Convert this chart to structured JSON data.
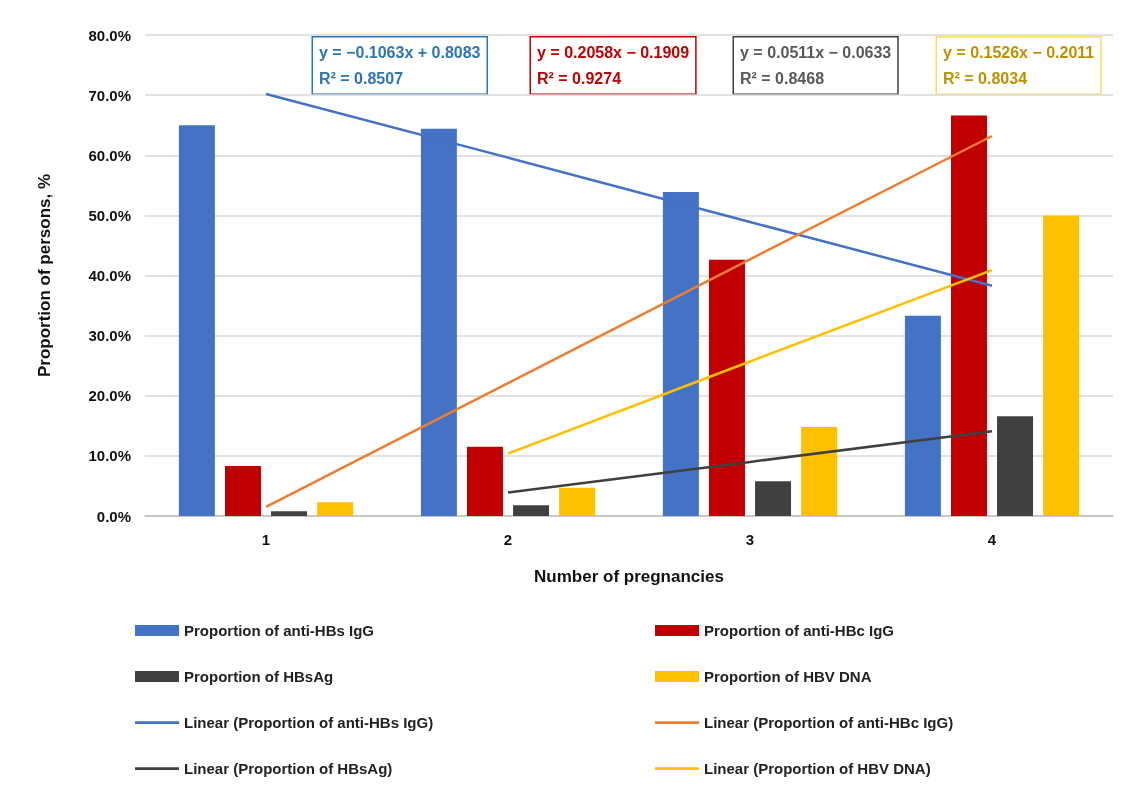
{
  "chart_data": {
    "type": "bar",
    "xlabel": "Number of pregnancies",
    "ylabel": "Proportion of persons, %",
    "categories": [
      "1",
      "2",
      "3",
      "4"
    ],
    "series": [
      {
        "name": "Proportion of anti-HBs IgG",
        "color": "#4472c4",
        "values": [
          65.0,
          64.4,
          53.9,
          33.3
        ]
      },
      {
        "name": "Proportion of anti-HBc IgG",
        "color": "#c00000",
        "values": [
          8.3,
          11.5,
          42.6,
          66.6
        ]
      },
      {
        "name": "Proportion of HBsAg",
        "color": "#404040",
        "values": [
          0.8,
          1.8,
          5.8,
          16.6
        ]
      },
      {
        "name": "Proportion of HBV DNA",
        "color": "#ffc000",
        "values": [
          2.3,
          4.7,
          14.8,
          50.0
        ]
      },
      {
        "name": "Linear (Proportion of anti-HBs IgG)",
        "type": "line",
        "color": "#4472c4",
        "values": [
          70.2,
          59.6,
          48.9,
          38.3
        ]
      },
      {
        "name": "Linear (Proportion of anti-HBc IgG)",
        "type": "line",
        "color": "#ed7d31",
        "values": [
          1.5,
          22.1,
          42.7,
          63.2
        ]
      },
      {
        "name": "Linear (Proportion of HBsAg)",
        "type": "line",
        "color": "#404040",
        "values": [
          null,
          3.9,
          9.0,
          14.1
        ]
      },
      {
        "name": "Linear (Proportion of HBV DNA)",
        "type": "line",
        "color": "#ffc000",
        "values": [
          null,
          10.4,
          25.7,
          40.9
        ]
      }
    ],
    "ylim": [
      0,
      80
    ],
    "yticks": [
      {
        "value": 0,
        "label": "0.0%"
      },
      {
        "value": 10,
        "label": "10.0%"
      },
      {
        "value": 20,
        "label": "20.0%"
      },
      {
        "value": 30,
        "label": "30.0%"
      },
      {
        "value": 40,
        "label": "40.0%"
      },
      {
        "value": 50,
        "label": "50.0%"
      },
      {
        "value": 60,
        "label": "60.0%"
      },
      {
        "value": 70,
        "label": "70.0%"
      },
      {
        "value": 80,
        "label": "80.0%"
      }
    ],
    "annotations": [
      "y = −0.1063x + 0.8083\nR² = 0.8507",
      "y = 0.2058x − 0.1909\nR² = 0.9274",
      "y = 0.0511x − 0.0633\nR² = 0.8468",
      "y = 0.1526x − 0.2011\nR² = 0.8034"
    ],
    "grid": "y",
    "legend": "bottom",
    "marker": "none",
    "line_style": "solid"
  }
}
